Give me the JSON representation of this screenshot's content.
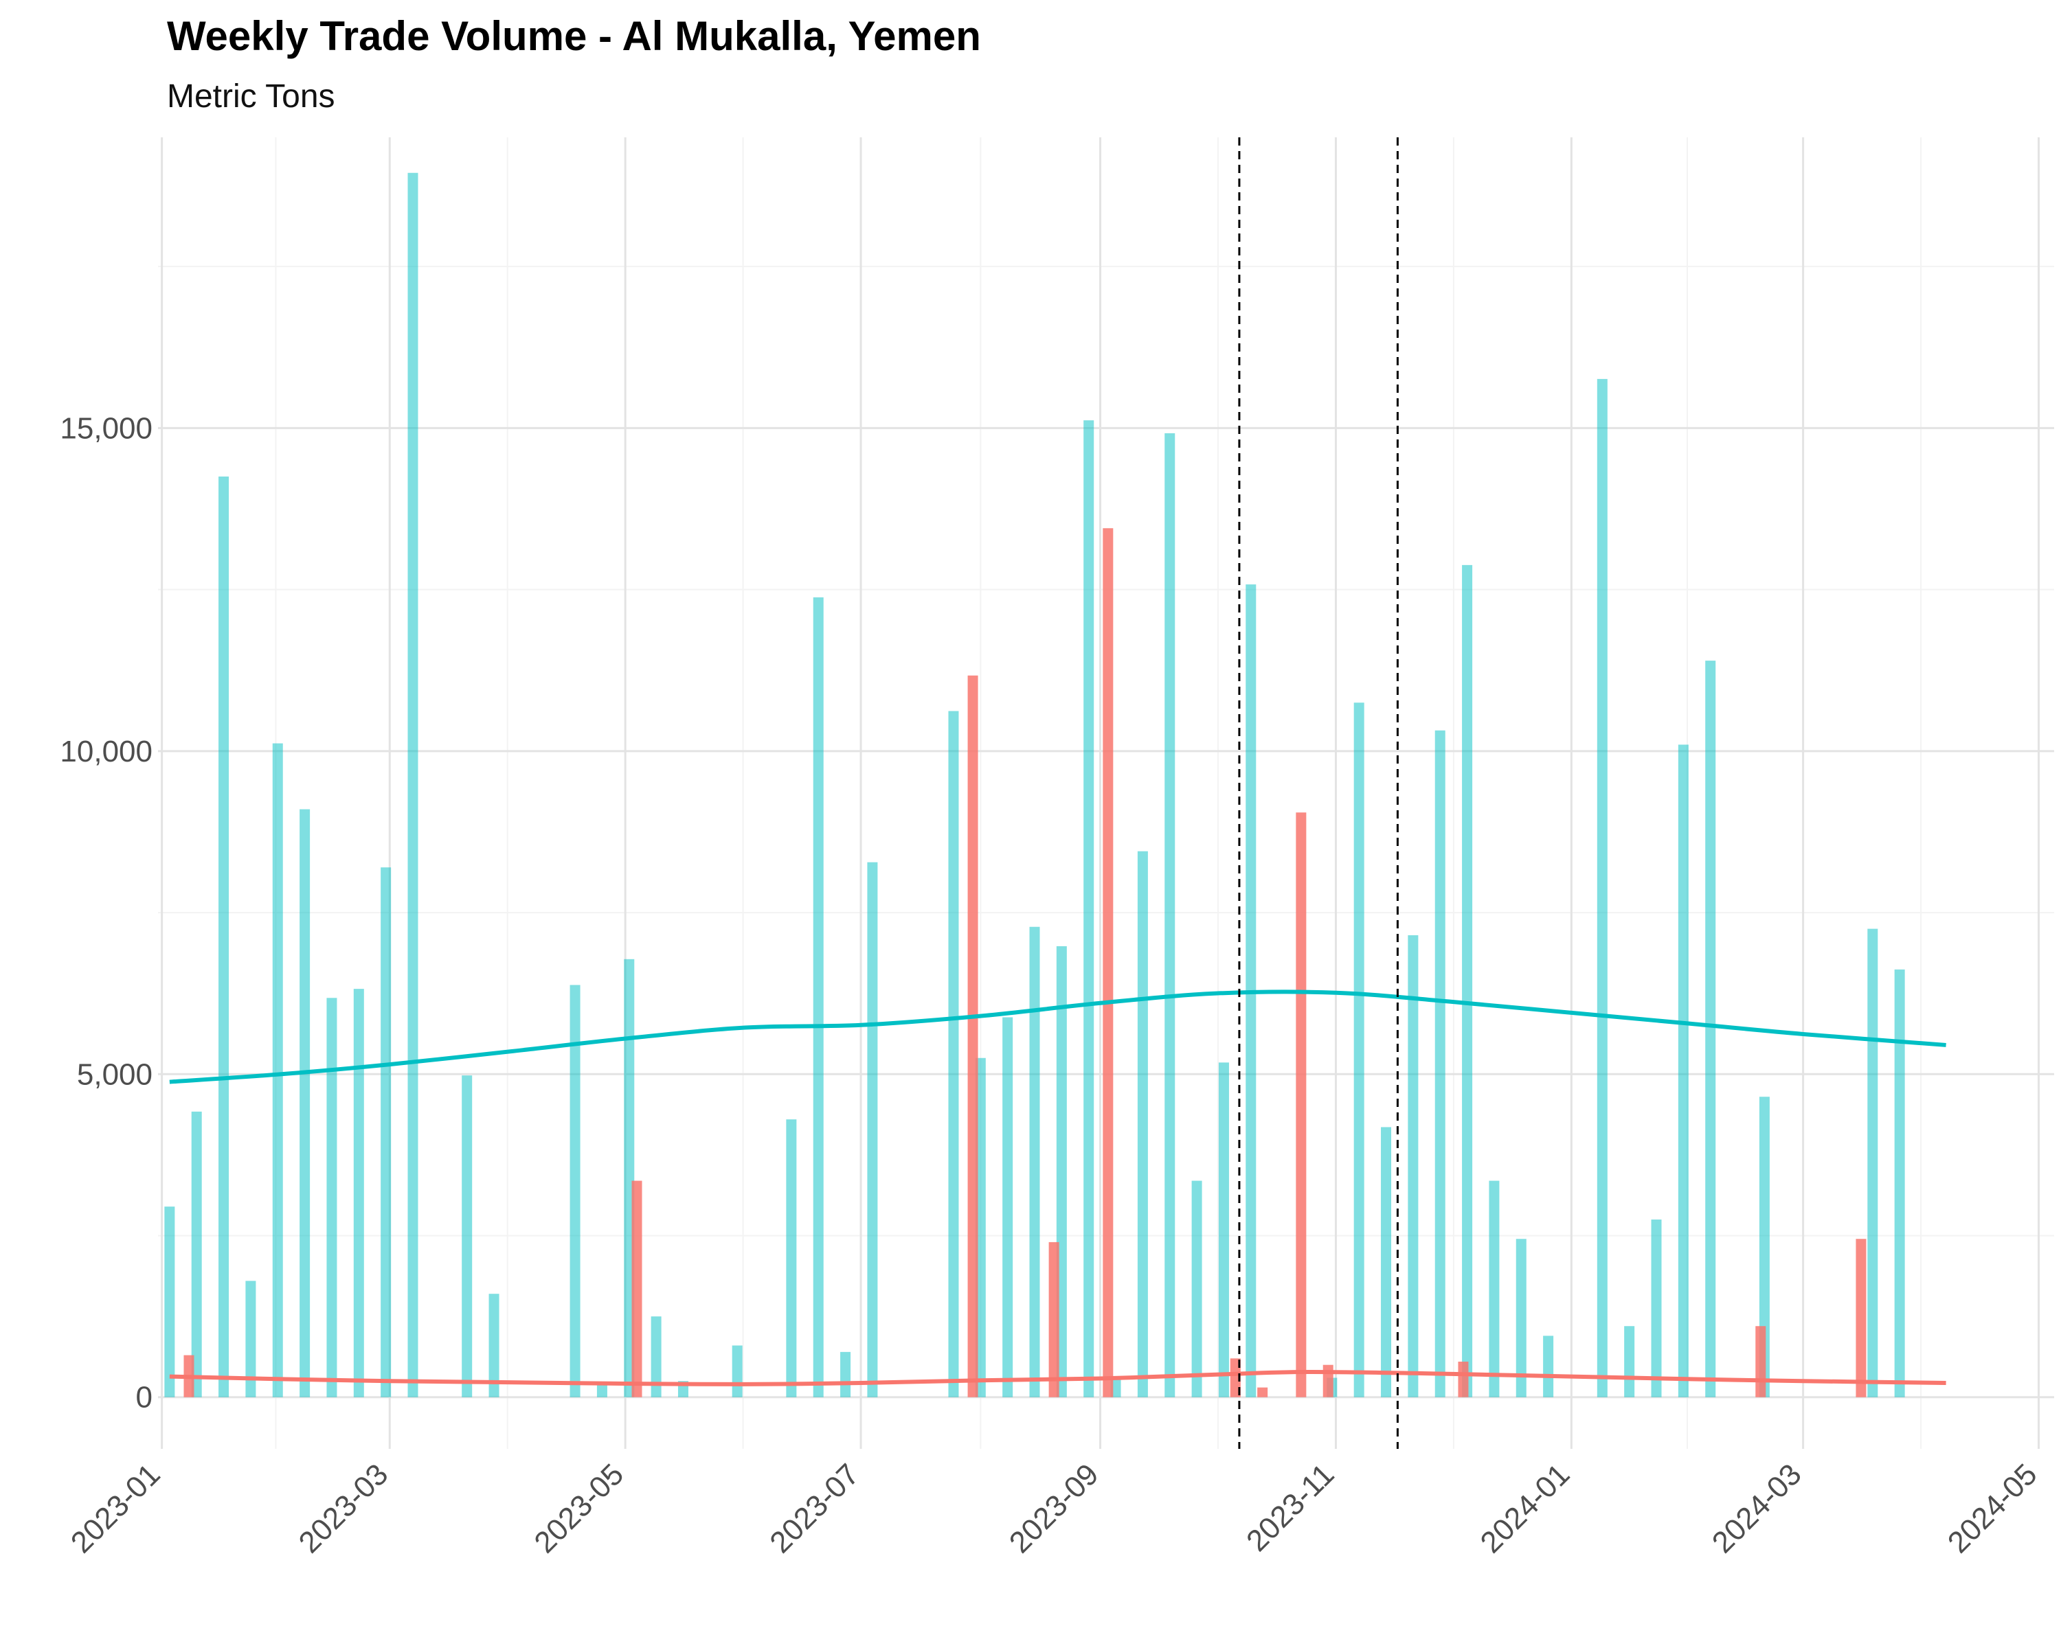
{
  "chart_data": {
    "type": "bar",
    "title": "Weekly Trade Volume - Al Mukalla, Yemen",
    "subtitle": "Metric Tons",
    "xlabel": "",
    "ylabel": "",
    "x_axis": {
      "type": "date",
      "range": [
        "2022-12-31",
        "2024-05-05"
      ],
      "ticks": [
        "2023-01-01",
        "2023-03-01",
        "2023-05-01",
        "2023-07-01",
        "2023-09-01",
        "2023-11-01",
        "2024-01-01",
        "2024-03-01",
        "2024-05-01"
      ],
      "tick_labels": [
        "2023-01",
        "2023-03",
        "2023-05",
        "2023-07",
        "2023-09",
        "2023-11",
        "2024-01",
        "2024-03",
        "2024-05"
      ]
    },
    "y_axis": {
      "range": [
        -800,
        19500
      ],
      "ticks": [
        0,
        5000,
        10000,
        15000
      ],
      "tick_labels": [
        "0",
        "5,000",
        "10,000",
        "15,000"
      ]
    },
    "grid": true,
    "legend": "none",
    "series": [
      {
        "color": "#00BFC4",
        "bar_opacity": 0.5,
        "points": [
          [
            "2023-01-03",
            2950
          ],
          [
            "2023-01-10",
            4420
          ],
          [
            "2023-01-17",
            14250
          ],
          [
            "2023-01-24",
            1800
          ],
          [
            "2023-01-31",
            10120
          ],
          [
            "2023-02-07",
            9100
          ],
          [
            "2023-02-14",
            6180
          ],
          [
            "2023-02-21",
            6320
          ],
          [
            "2023-02-28",
            8200
          ],
          [
            "2023-03-07",
            18950
          ],
          [
            "2023-03-21",
            4980
          ],
          [
            "2023-03-28",
            1600
          ],
          [
            "2023-04-18",
            6380
          ],
          [
            "2023-04-25",
            200
          ],
          [
            "2023-05-02",
            6780
          ],
          [
            "2023-05-09",
            1250
          ],
          [
            "2023-05-16",
            250
          ],
          [
            "2023-05-30",
            800
          ],
          [
            "2023-06-13",
            4300
          ],
          [
            "2023-06-20",
            12380
          ],
          [
            "2023-06-27",
            700
          ],
          [
            "2023-07-04",
            8280
          ],
          [
            "2023-07-25",
            10620
          ],
          [
            "2023-08-01",
            5250
          ],
          [
            "2023-08-08",
            5880
          ],
          [
            "2023-08-15",
            7280
          ],
          [
            "2023-08-22",
            6980
          ],
          [
            "2023-08-29",
            15120
          ],
          [
            "2023-09-05",
            300
          ],
          [
            "2023-09-12",
            8450
          ],
          [
            "2023-09-19",
            14920
          ],
          [
            "2023-09-26",
            3350
          ],
          [
            "2023-10-03",
            5180
          ],
          [
            "2023-10-10",
            12580
          ],
          [
            "2023-10-31",
            300
          ],
          [
            "2023-11-07",
            10750
          ],
          [
            "2023-11-14",
            4180
          ],
          [
            "2023-11-21",
            7150
          ],
          [
            "2023-11-28",
            10320
          ],
          [
            "2023-12-05",
            12880
          ],
          [
            "2023-12-12",
            3350
          ],
          [
            "2023-12-19",
            2450
          ],
          [
            "2023-12-26",
            950
          ],
          [
            "2024-01-09",
            15760
          ],
          [
            "2024-01-16",
            1100
          ],
          [
            "2024-01-23",
            2750
          ],
          [
            "2024-01-30",
            10100
          ],
          [
            "2024-02-06",
            11400
          ],
          [
            "2024-02-20",
            4650
          ],
          [
            "2024-03-19",
            7250
          ],
          [
            "2024-03-26",
            6620
          ]
        ],
        "trend": [
          [
            "2023-01-03",
            4880
          ],
          [
            "2023-02-01",
            5000
          ],
          [
            "2023-03-01",
            5150
          ],
          [
            "2023-04-01",
            5350
          ],
          [
            "2023-05-01",
            5550
          ],
          [
            "2023-06-01",
            5720
          ],
          [
            "2023-07-01",
            5760
          ],
          [
            "2023-08-01",
            5900
          ],
          [
            "2023-09-01",
            6100
          ],
          [
            "2023-10-01",
            6250
          ],
          [
            "2023-11-01",
            6260
          ],
          [
            "2023-12-01",
            6120
          ],
          [
            "2024-01-01",
            5950
          ],
          [
            "2024-02-01",
            5780
          ],
          [
            "2024-03-01",
            5620
          ],
          [
            "2024-04-07",
            5450
          ]
        ]
      },
      {
        "color": "#F8766D",
        "bar_opacity": 0.85,
        "points": [
          [
            "2023-01-08",
            650
          ],
          [
            "2023-05-04",
            3350
          ],
          [
            "2023-07-30",
            11170
          ],
          [
            "2023-08-20",
            2400
          ],
          [
            "2023-09-03",
            13450
          ],
          [
            "2023-10-06",
            600
          ],
          [
            "2023-10-13",
            150
          ],
          [
            "2023-10-23",
            9050
          ],
          [
            "2023-10-30",
            500
          ],
          [
            "2023-12-04",
            550
          ],
          [
            "2024-02-19",
            1100
          ],
          [
            "2024-03-16",
            2450
          ]
        ],
        "trend": [
          [
            "2023-01-03",
            320
          ],
          [
            "2023-02-01",
            280
          ],
          [
            "2023-03-01",
            250
          ],
          [
            "2023-04-01",
            230
          ],
          [
            "2023-05-01",
            210
          ],
          [
            "2023-06-01",
            200
          ],
          [
            "2023-07-01",
            220
          ],
          [
            "2023-08-01",
            260
          ],
          [
            "2023-09-01",
            290
          ],
          [
            "2023-10-01",
            350
          ],
          [
            "2023-10-25",
            390
          ],
          [
            "2023-12-01",
            360
          ],
          [
            "2024-01-01",
            320
          ],
          [
            "2024-02-01",
            280
          ],
          [
            "2024-03-01",
            250
          ],
          [
            "2024-04-07",
            220
          ]
        ]
      }
    ],
    "reference_lines": [
      {
        "axis": "x",
        "value": "2023-10-07",
        "style": "dashed",
        "color": "#000000"
      },
      {
        "axis": "x",
        "value": "2023-11-17",
        "style": "dashed",
        "color": "#000000"
      }
    ]
  }
}
